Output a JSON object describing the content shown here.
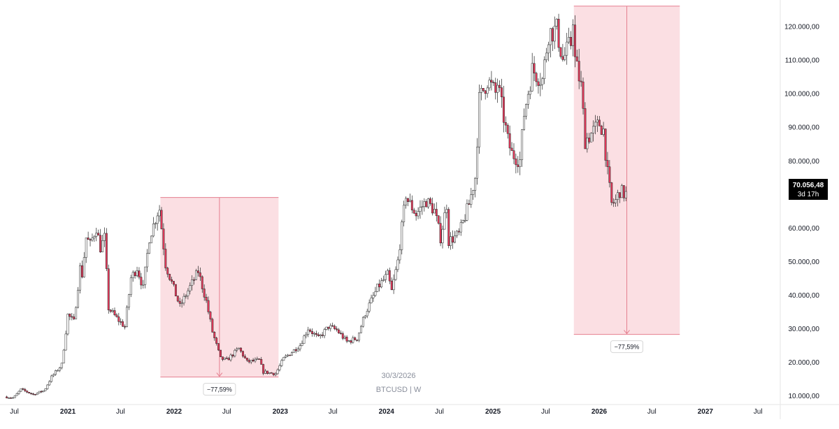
{
  "chart_data": {
    "type": "candlestick",
    "symbol_label": "BTCUSD | W",
    "date_watermark": "30/3/2026",
    "price_axis": {
      "ticks": [
        10000,
        20000,
        30000,
        40000,
        50000,
        60000,
        70000,
        80000,
        90000,
        100000,
        110000,
        120000
      ],
      "tick_labels": [
        "10.000,00",
        "20.000,00",
        "30.000,00",
        "40.000,00",
        "50.000,00",
        "60.000,00",
        "70.000,00",
        "80.000,00",
        "90.000,00",
        "100.000,00",
        "110.000,00",
        "120.000,00"
      ],
      "range": [
        5000,
        127000
      ]
    },
    "time_axis": {
      "ticks": [
        "2020-07-01",
        "2021-01-01",
        "2021-07-01",
        "2022-01-01",
        "2022-07-01",
        "2023-01-01",
        "2023-07-01",
        "2024-01-01",
        "2024-07-01",
        "2025-01-01",
        "2025-07-01",
        "2026-01-01",
        "2026-07-01",
        "2027-01-01",
        "2027-07-01"
      ],
      "tick_labels": [
        "Jul",
        "2021",
        "Jul",
        "2022",
        "Jul",
        "2023",
        "Jul",
        "2024",
        "Jul",
        "2025",
        "Jul",
        "2026",
        "Jul",
        "2027",
        "Jul"
      ],
      "bold_labels": [
        "2021",
        "2022",
        "2023",
        "2024",
        "2025",
        "2026",
        "2027"
      ],
      "range": [
        "2020-06-01",
        "2027-09-01"
      ]
    },
    "last_price": {
      "value": 70056.48,
      "label": "70.056,48",
      "countdown": "3d 17h"
    },
    "price_path": [
      [
        "2020-06-01",
        9600
      ],
      [
        "2020-07-01",
        9300
      ],
      [
        "2020-07-27",
        11800
      ],
      [
        "2020-09-07",
        10300
      ],
      [
        "2020-10-15",
        11500
      ],
      [
        "2020-11-09",
        15500
      ],
      [
        "2020-12-14",
        19200
      ],
      [
        "2021-01-04",
        34000
      ],
      [
        "2021-01-25",
        32000
      ],
      [
        "2021-02-15",
        48000
      ],
      [
        "2021-02-22",
        46000
      ],
      [
        "2021-03-08",
        57000
      ],
      [
        "2021-03-22",
        55000
      ],
      [
        "2021-04-12",
        60000
      ],
      [
        "2021-04-26",
        54000
      ],
      [
        "2021-05-10",
        57000
      ],
      [
        "2021-05-24",
        36000
      ],
      [
        "2021-06-21",
        33000
      ],
      [
        "2021-07-19",
        30500
      ],
      [
        "2021-08-09",
        45000
      ],
      [
        "2021-08-30",
        48000
      ],
      [
        "2021-09-20",
        42000
      ],
      [
        "2021-10-11",
        57000
      ],
      [
        "2021-11-08",
        64500
      ],
      [
        "2021-11-15",
        65500
      ],
      [
        "2021-12-06",
        49000
      ],
      [
        "2022-01-24",
        36500
      ],
      [
        "2022-02-14",
        40000
      ],
      [
        "2022-03-28",
        47000
      ],
      [
        "2022-04-25",
        38000
      ],
      [
        "2022-05-16",
        29000
      ],
      [
        "2022-06-13",
        21000
      ],
      [
        "2022-07-04",
        20500
      ],
      [
        "2022-08-15",
        24000
      ],
      [
        "2022-09-12",
        20000
      ],
      [
        "2022-10-24",
        20500
      ],
      [
        "2022-11-07",
        17000
      ],
      [
        "2022-12-19",
        16500
      ],
      [
        "2023-01-16",
        21000
      ],
      [
        "2023-02-20",
        23500
      ],
      [
        "2023-03-13",
        25000
      ],
      [
        "2023-04-10",
        30000
      ],
      [
        "2023-05-15",
        27000
      ],
      [
        "2023-06-19",
        30500
      ],
      [
        "2023-07-17",
        29500
      ],
      [
        "2023-08-21",
        26000
      ],
      [
        "2023-09-25",
        27000
      ],
      [
        "2023-10-23",
        34500
      ],
      [
        "2023-12-04",
        42000
      ],
      [
        "2024-01-08",
        46000
      ],
      [
        "2024-01-22",
        41000
      ],
      [
        "2024-02-12",
        50000
      ],
      [
        "2024-03-11",
        70000
      ],
      [
        "2024-03-18",
        68000
      ],
      [
        "2024-04-15",
        64000
      ],
      [
        "2024-05-20",
        68000
      ],
      [
        "2024-06-17",
        65000
      ],
      [
        "2024-07-08",
        57000
      ],
      [
        "2024-07-29",
        67000
      ],
      [
        "2024-08-05",
        56000
      ],
      [
        "2024-09-09",
        58000
      ],
      [
        "2024-10-14",
        67000
      ],
      [
        "2024-11-04",
        75000
      ],
      [
        "2024-11-18",
        98000
      ],
      [
        "2024-12-16",
        104000
      ],
      [
        "2025-01-13",
        100000
      ],
      [
        "2025-01-20",
        103000
      ],
      [
        "2025-02-24",
        86000
      ],
      [
        "2025-03-10",
        82000
      ],
      [
        "2025-04-07",
        80000
      ],
      [
        "2025-04-21",
        94000
      ],
      [
        "2025-05-19",
        107000
      ],
      [
        "2025-06-23",
        104000
      ],
      [
        "2025-07-14",
        118000
      ],
      [
        "2025-08-11",
        119000
      ],
      [
        "2025-09-01",
        110000
      ],
      [
        "2025-09-29",
        115000
      ],
      [
        "2025-10-06",
        123000
      ],
      [
        "2025-10-13",
        110000
      ],
      [
        "2025-11-03",
        102000
      ],
      [
        "2025-11-17",
        86000
      ],
      [
        "2025-12-08",
        88000
      ],
      [
        "2026-01-05",
        91000
      ],
      [
        "2026-01-19",
        89000
      ],
      [
        "2026-02-02",
        76000
      ],
      [
        "2026-02-16",
        67000
      ],
      [
        "2026-03-02",
        68000
      ],
      [
        "2026-03-16",
        71000
      ],
      [
        "2026-03-30",
        70056
      ]
    ],
    "drawdowns": [
      {
        "start": "2021-11-15",
        "end": "2022-12-26",
        "center": "2022-06-06",
        "top": 69000,
        "bottom": 15500,
        "label": "−77,59%"
      },
      {
        "start": "2025-10-06",
        "end": "2026-10-05",
        "center": "2026-04-06",
        "top": 126000,
        "bottom": 28200,
        "label": "−77,59%"
      }
    ],
    "colors": {
      "up": "#ffffff",
      "down": "#e5395b",
      "candle_outline": "#222222",
      "drawdown_fill": "#f8c9d1",
      "drawdown_line": "#e57f8f",
      "axis_text": "#131722",
      "watermark_text": "#8a8f9c",
      "last_price_bg": "#000000"
    }
  }
}
